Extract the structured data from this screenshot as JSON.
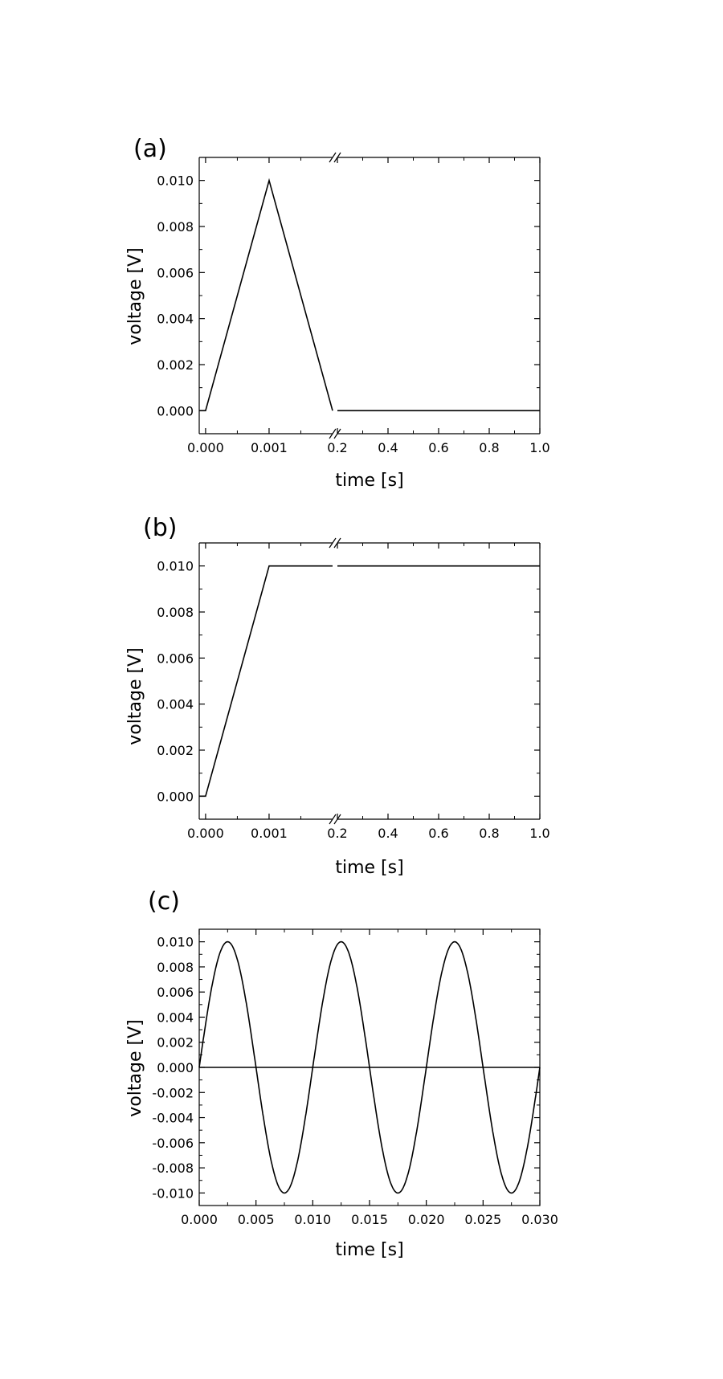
{
  "chart_data": [
    {
      "type": "line",
      "panel_label": "(a)",
      "xlabel": "time [s]",
      "ylabel": "voltage [V]",
      "x_axis": "broken",
      "x_break_left": {
        "range": [
          -0.0001,
          0.002
        ],
        "ticks": [
          "0.000",
          "0.001"
        ]
      },
      "x_break_right": {
        "range": [
          0.2,
          1.0
        ],
        "ticks": [
          "0.2",
          "0.4",
          "0.6",
          "0.8",
          "1.0"
        ]
      },
      "ylim": [
        -0.001,
        0.011
      ],
      "yticks": [
        "0.000",
        "0.002",
        "0.004",
        "0.006",
        "0.008",
        "0.010"
      ],
      "series": [
        {
          "values": [
            [
              -0.0001,
              0
            ],
            [
              0,
              0
            ],
            [
              0.001,
              0.01
            ],
            [
              0.002,
              0
            ],
            [
              0.2,
              0
            ],
            [
              1.0,
              0
            ]
          ]
        }
      ]
    },
    {
      "type": "line",
      "panel_label": "(b)",
      "xlabel": "time [s]",
      "ylabel": "voltage [V]",
      "x_axis": "broken",
      "x_break_left": {
        "range": [
          -0.0001,
          0.002
        ],
        "ticks": [
          "0.000",
          "0.001"
        ]
      },
      "x_break_right": {
        "range": [
          0.2,
          1.0
        ],
        "ticks": [
          "0.2",
          "0.4",
          "0.6",
          "0.8",
          "1.0"
        ]
      },
      "ylim": [
        -0.001,
        0.011
      ],
      "yticks": [
        "0.000",
        "0.002",
        "0.004",
        "0.006",
        "0.008",
        "0.010"
      ],
      "series": [
        {
          "values": [
            [
              -0.0001,
              0
            ],
            [
              0,
              0
            ],
            [
              0.001,
              0.01
            ],
            [
              0.002,
              0.01
            ],
            [
              0.2,
              0.01
            ],
            [
              1.0,
              0.01
            ]
          ]
        }
      ]
    },
    {
      "type": "line",
      "panel_label": "(c)",
      "xlabel": "time [s]",
      "ylabel": "voltage [V]",
      "xlim": [
        0,
        0.03
      ],
      "xticks": [
        "0.000",
        "0.005",
        "0.010",
        "0.015",
        "0.020",
        "0.025",
        "0.030"
      ],
      "ylim": [
        -0.011,
        0.011
      ],
      "yticks": [
        "0.010",
        "0.008",
        "0.006",
        "0.004",
        "0.002",
        "0.000",
        "-0.002",
        "-0.004",
        "-0.006",
        "-0.008",
        "-0.010"
      ],
      "series": [
        {
          "function": "sine",
          "amplitude": 0.01,
          "frequency_hz": 100,
          "x_range": [
            0,
            0.03
          ]
        },
        {
          "values": [
            [
              0,
              0
            ],
            [
              0.03,
              0
            ]
          ]
        }
      ]
    }
  ]
}
